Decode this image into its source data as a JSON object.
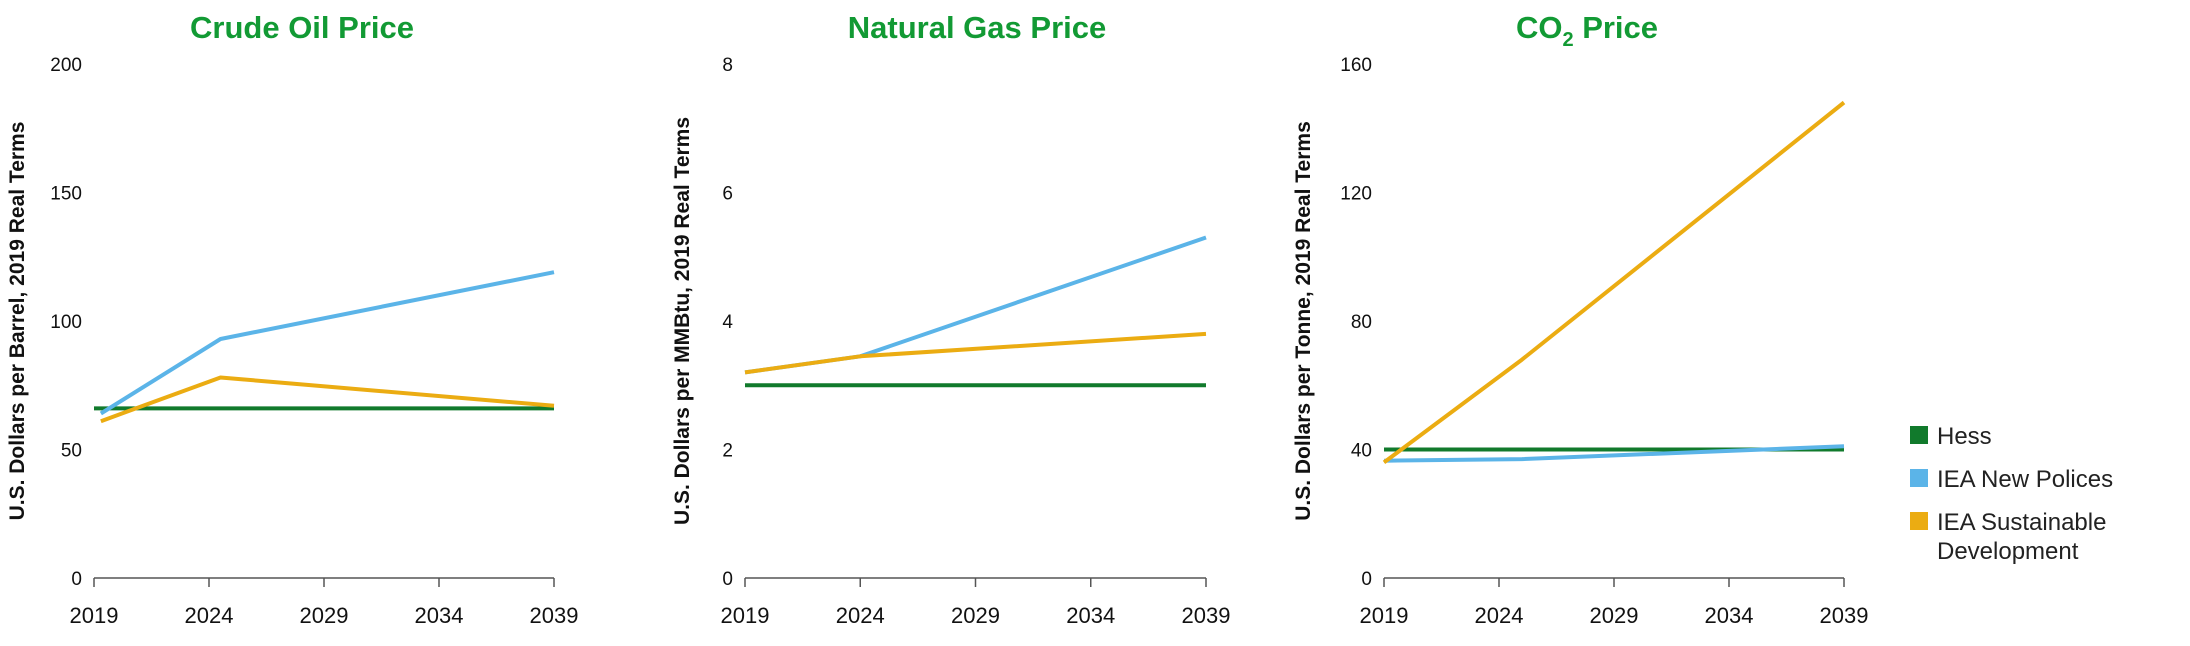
{
  "colors": {
    "hess": "#117a2c",
    "iea_new": "#5bb4e8",
    "iea_sd": "#ebac12",
    "title": "#129a34"
  },
  "legend": [
    {
      "key": "hess",
      "label": "Hess"
    },
    {
      "key": "iea_new",
      "label": "IEA New Polices"
    },
    {
      "key": "iea_sd",
      "label": "IEA Sustainable Development",
      "lines": [
        "IEA Sustainable",
        "Development"
      ]
    }
  ],
  "chart_data": [
    {
      "type": "line",
      "title": "Crude Oil Price",
      "ylabel": "U.S. Dollars per Barrel, 2019 Real Terms",
      "xlabel": "",
      "ylim": [
        0,
        200
      ],
      "yticks": [
        "0",
        "50",
        "100",
        "150",
        "200"
      ],
      "xlim": [
        2019,
        2039
      ],
      "xticks": [
        "2019",
        "2024",
        "2029",
        "2034",
        "2039"
      ],
      "series": [
        {
          "key": "hess",
          "name": "Hess",
          "points": [
            [
              2019,
              66
            ],
            [
              2039,
              66
            ]
          ]
        },
        {
          "key": "iea_new",
          "name": "IEA New Polices",
          "points": [
            [
              2019.3,
              64
            ],
            [
              2024.5,
              93
            ],
            [
              2039,
              119
            ]
          ]
        },
        {
          "key": "iea_sd",
          "name": "IEA Sustainable Development",
          "points": [
            [
              2019.3,
              61
            ],
            [
              2024.5,
              78
            ],
            [
              2039,
              67
            ]
          ]
        }
      ]
    },
    {
      "type": "line",
      "title": "Natural Gas Price",
      "ylabel": "U.S. Dollars per MMBtu, 2019 Real Terms",
      "xlabel": "",
      "ylim": [
        0,
        8
      ],
      "yticks": [
        "0",
        "2",
        "4",
        "6",
        "8"
      ],
      "xlim": [
        2019,
        2039
      ],
      "xticks": [
        "2019",
        "2024",
        "2029",
        "2034",
        "2039"
      ],
      "series": [
        {
          "key": "hess",
          "name": "Hess",
          "points": [
            [
              2019,
              3.0
            ],
            [
              2039,
              3.0
            ]
          ]
        },
        {
          "key": "iea_new",
          "name": "IEA New Polices",
          "points": [
            [
              2019,
              3.2
            ],
            [
              2024,
              3.45
            ],
            [
              2039,
              5.3
            ]
          ]
        },
        {
          "key": "iea_sd",
          "name": "IEA Sustainable Development",
          "points": [
            [
              2019,
              3.2
            ],
            [
              2024,
              3.45
            ],
            [
              2039,
              3.8
            ]
          ]
        }
      ]
    },
    {
      "type": "line",
      "title": "CO2 Price",
      "title_main": "CO",
      "title_sub": "2",
      "title_rest": " Price",
      "ylabel": "U.S. Dollars per Tonne, 2019 Real Terms",
      "xlabel": "",
      "ylim": [
        0,
        160
      ],
      "yticks": [
        "0",
        "40",
        "80",
        "120",
        "160"
      ],
      "xlim": [
        2019,
        2039
      ],
      "xticks": [
        "2019",
        "2024",
        "2029",
        "2034",
        "2039"
      ],
      "series": [
        {
          "key": "hess",
          "name": "Hess",
          "points": [
            [
              2019,
              40
            ],
            [
              2039,
              40
            ]
          ]
        },
        {
          "key": "iea_new",
          "name": "IEA New Polices",
          "points": [
            [
              2019,
              36.5
            ],
            [
              2025,
              37
            ],
            [
              2039,
              41
            ]
          ]
        },
        {
          "key": "iea_sd",
          "name": "IEA Sustainable Development",
          "points": [
            [
              2019,
              36
            ],
            [
              2025,
              68
            ],
            [
              2039,
              148
            ]
          ]
        }
      ]
    }
  ]
}
